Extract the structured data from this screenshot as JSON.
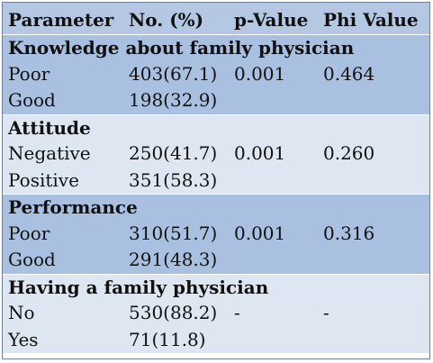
{
  "headers": [
    "Parameter",
    "No. (%)",
    "p-Value",
    "Phi Value"
  ],
  "sections": [
    {
      "title": "Knowledge about family physician",
      "rows": [
        {
          "label": "Poor",
          "no": "403(67.1)",
          "p": "0.001",
          "phi": "0.464"
        },
        {
          "label": "Good",
          "no": "198(32.9)",
          "p": "",
          "phi": ""
        }
      ]
    },
    {
      "title": "Attitude",
      "rows": [
        {
          "label": "Negative",
          "no": "250(41.7)",
          "p": "0.001",
          "phi": "0.260"
        },
        {
          "label": "Positive",
          "no": "351(58.3)",
          "p": "",
          "phi": ""
        }
      ]
    },
    {
      "title": "Performance",
      "rows": [
        {
          "label": "Poor",
          "no": "310(51.7)",
          "p": "0.001",
          "phi": "0.316"
        },
        {
          "label": "Good",
          "no": "291(48.3)",
          "p": "",
          "phi": ""
        }
      ]
    },
    {
      "title": "Having a family physician",
      "rows": [
        {
          "label": "No",
          "no": "530(88.2)",
          "p": "-",
          "phi": "-"
        },
        {
          "label": "Yes",
          "no": "71(11.8)",
          "p": "",
          "phi": ""
        }
      ]
    }
  ],
  "colors": {
    "header_band": "#b4c8e4",
    "dark_band": "#a9c0e1",
    "light_band": "#dde6f1",
    "border": "#6f7f96"
  }
}
